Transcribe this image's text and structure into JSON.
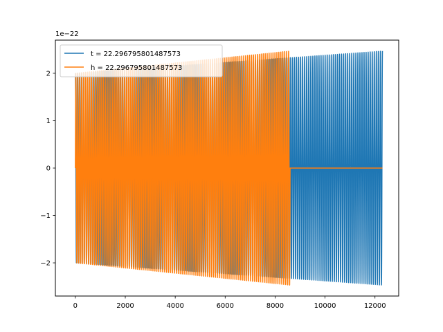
{
  "chart_data": {
    "type": "line",
    "title": "",
    "xlabel": "",
    "ylabel": "",
    "xlim": [
      -800,
      12950
    ],
    "ylim": [
      -2.7,
      2.7
    ],
    "y_offset_label": "1e−22",
    "x_ticks": [
      0,
      2000,
      4000,
      6000,
      8000,
      10000,
      12000
    ],
    "x_tick_labels": [
      "0",
      "2000",
      "4000",
      "6000",
      "8000",
      "10000",
      "12000"
    ],
    "y_ticks": [
      -2,
      -1,
      0,
      1,
      2
    ],
    "y_tick_labels": [
      "−2",
      "−1",
      "0",
      "1",
      "2"
    ],
    "grid": false,
    "legend_position": "top-left",
    "series": [
      {
        "name": "t = 22.296795801487573",
        "color": "#1f77b4",
        "x_start": 0,
        "signal_end": 12300,
        "x_end": 12300,
        "amplitude_start": 2.0,
        "amplitude_end": 2.47,
        "cycles": 150
      },
      {
        "name": "h = 22.296795801487573",
        "color": "#ff7f0e",
        "x_start": 0,
        "signal_end": 8600,
        "x_end": 12300,
        "amplitude_start": 2.0,
        "amplitude_end": 2.47,
        "cycles": 110
      }
    ]
  }
}
